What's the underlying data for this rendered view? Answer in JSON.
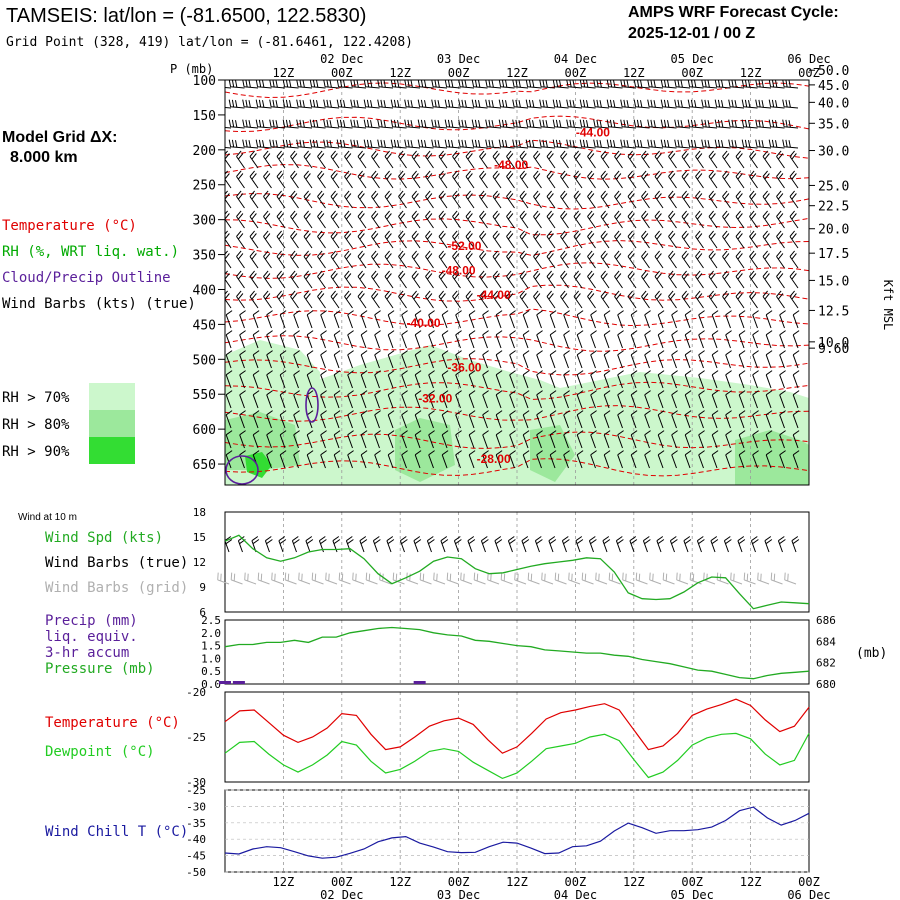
{
  "header": {
    "title": "TAMSEIS:  lat/lon = (-81.6500, 122.5830)",
    "subtitle": "Grid Point (328, 419) lat/lon = (-81.6461, 122.4208)",
    "cycle_line1": "AMPS WRF Forecast Cycle:",
    "cycle_line2": "2025-12-01 / 00  Z"
  },
  "colors": {
    "temperature": "#e00000",
    "rh": "#00aa00",
    "cloud": "#5a1f9a",
    "wind": "#000000",
    "wind_grid": "#b0b0b0",
    "dewpoint": "#22cc22",
    "windchill": "#1a1aa0",
    "rh70": "#ccf7cc",
    "rh80": "#9ce89c",
    "rh90": "#33dd33"
  },
  "left_panel": {
    "grid_line1": "Model Grid ΔX:",
    "grid_line2": "8.000 km",
    "legend": [
      {
        "label": "Temperature (°C)",
        "color": "#e00000"
      },
      {
        "label": "RH (%, WRT liq. wat.)",
        "color": "#00aa00"
      },
      {
        "label": "Cloud/Precip Outline",
        "color": "#5a1f9a"
      },
      {
        "label": "Wind Barbs (kts) (true)",
        "color": "#000000"
      }
    ],
    "rh_legend": [
      {
        "label": "RH > 70%",
        "color": "#ccf7cc"
      },
      {
        "label": "RH > 80%",
        "color": "#9ce89c"
      },
      {
        "label": "RH > 90%",
        "color": "#33dd33"
      }
    ]
  },
  "time_axis": {
    "hour_labels": [
      "12Z",
      "00Z",
      "12Z",
      "00Z",
      "12Z",
      "00Z",
      "12Z",
      "00Z",
      "12Z",
      "00Z"
    ],
    "date_labels": [
      "02 Dec",
      "03 Dec",
      "04 Dec",
      "05 Dec",
      "06 Dec"
    ]
  },
  "chart_data": [
    {
      "type": "contour",
      "name": "cross-section",
      "ylabel": "P (mb)",
      "yticks": [
        "100",
        "150",
        "200",
        "250",
        "300",
        "350",
        "400",
        "450",
        "500",
        "550",
        "600",
        "650"
      ],
      "ylim": [
        100,
        680
      ],
      "right_axis_label": "Kft MSL",
      "right_ticks": [
        "50.0",
        "45.0",
        "40.0",
        "35.0",
        "30.0",
        "25.0",
        "22.5",
        "20.0",
        "17.5",
        "15.0",
        "12.5",
        "10.0",
        "9.60"
      ],
      "right_tick_pressures": [
        86,
        107,
        132,
        162,
        201,
        251,
        280,
        313,
        348,
        387,
        430,
        475,
        484
      ],
      "contour_labels": [
        {
          "text": "-44.00",
          "t": 0.63,
          "p": 175
        },
        {
          "text": "-48.00",
          "t": 0.49,
          "p": 222
        },
        {
          "text": "-52.00",
          "t": 0.41,
          "p": 338
        },
        {
          "text": "-48.00",
          "t": 0.4,
          "p": 373
        },
        {
          "text": "-44.00",
          "t": 0.46,
          "p": 408
        },
        {
          "text": "-40.00",
          "t": 0.34,
          "p": 448
        },
        {
          "text": "-36.00",
          "t": 0.41,
          "p": 512
        },
        {
          "text": "-32.00",
          "t": 0.36,
          "p": 556
        },
        {
          "text": "-28.00",
          "t": 0.46,
          "p": 643
        }
      ]
    },
    {
      "type": "line",
      "name": "wind-10m",
      "label": "Wind at 10 m",
      "legend": [
        {
          "label": "Wind Spd (kts)",
          "color": "#22aa22"
        },
        {
          "label": "Wind Barbs (true)",
          "color": "#000000"
        },
        {
          "label": "Wind Barbs (grid)",
          "color": "#b0b0b0"
        }
      ],
      "yticks": [
        "18",
        "15",
        "12",
        "9",
        "6"
      ],
      "ylim": [
        6,
        18
      ],
      "series": [
        {
          "values": [
            14.5,
            15.2,
            13.6,
            12.5,
            12.1,
            12.5,
            13.2,
            13.5,
            13.5,
            13.6,
            12.4,
            10.6,
            9.4,
            10.1,
            10.9,
            12.1,
            12.6,
            12.4,
            11.2,
            10.6,
            10.7,
            11.1,
            11.5,
            11.8,
            12.0,
            12.2,
            12.5,
            12.4,
            10.8,
            8.3,
            7.6,
            7.5,
            7.6,
            8.4,
            9.5,
            10.2,
            10.1,
            8.2,
            6.4,
            6.8,
            7.2,
            7.1,
            7.0
          ]
        }
      ]
    },
    {
      "type": "line",
      "name": "precip-pressure",
      "legend": [
        {
          "label": "Precip (mm)",
          "color": "#5a1f9a"
        },
        {
          "label": "liq. equiv.",
          "color": "#5a1f9a"
        },
        {
          "label": "3-hr accum",
          "color": "#5a1f9a"
        },
        {
          "label": "Pressure (mb)",
          "color": "#22aa22"
        }
      ],
      "left_ticks": [
        "2.5",
        "2.0",
        "1.5",
        "1.0",
        "0.5",
        "0.0"
      ],
      "left_ylim": [
        0,
        2.5
      ],
      "right_ticks": [
        "686",
        "684",
        "682",
        "680"
      ],
      "right_ylim": [
        680,
        686
      ],
      "right_axis_label": "(mb)",
      "series": [
        {
          "name": "Pressure",
          "values": [
            683.5,
            683.7,
            683.7,
            683.9,
            683.9,
            684.1,
            683.9,
            684.4,
            684.4,
            684.8,
            685.0,
            685.2,
            685.3,
            685.2,
            685.1,
            684.8,
            684.6,
            684.5,
            684.1,
            684.0,
            683.8,
            683.6,
            683.5,
            683.2,
            683.1,
            683.0,
            682.9,
            682.9,
            682.7,
            682.6,
            682.3,
            682.1,
            681.9,
            681.6,
            681.3,
            681.2,
            680.9,
            680.6,
            680.5,
            680.8,
            681.0,
            681.1,
            681.2
          ]
        },
        {
          "name": "Precip",
          "values": [
            0.02,
            0.02,
            0,
            0,
            0,
            0,
            0,
            0,
            0,
            0,
            0,
            0,
            0,
            0,
            0.02,
            0,
            0,
            0,
            0,
            0,
            0,
            0,
            0,
            0,
            0,
            0,
            0,
            0,
            0,
            0,
            0,
            0,
            0,
            0,
            0,
            0,
            0,
            0,
            0,
            0,
            0,
            0,
            0
          ]
        }
      ]
    },
    {
      "type": "line",
      "name": "temperature-dewpoint",
      "legend": [
        {
          "label": "Temperature (°C)",
          "color": "#e00000"
        },
        {
          "label": "Dewpoint (°C)",
          "color": "#22cc22"
        }
      ],
      "yticks": [
        "-20",
        "-25",
        "-30"
      ],
      "ylim": [
        -30,
        -20
      ],
      "series": [
        {
          "name": "Temperature",
          "values": [
            -23.3,
            -22.1,
            -22.0,
            -23.4,
            -24.8,
            -25.6,
            -25.0,
            -24.0,
            -22.4,
            -22.6,
            -24.7,
            -26.4,
            -26.1,
            -25.0,
            -23.8,
            -23.2,
            -22.9,
            -23.6,
            -25.3,
            -26.8,
            -26.1,
            -24.6,
            -23.0,
            -22.3,
            -22.0,
            -21.6,
            -21.3,
            -22.0,
            -24.2,
            -26.4,
            -26.0,
            -24.6,
            -22.6,
            -21.9,
            -21.4,
            -20.8,
            -21.5,
            -23.1,
            -24.4,
            -23.8,
            -21.7
          ]
        },
        {
          "name": "Dewpoint",
          "values": [
            -26.8,
            -25.6,
            -25.5,
            -26.9,
            -28.1,
            -28.9,
            -28.1,
            -27.0,
            -25.5,
            -25.9,
            -27.7,
            -29.0,
            -28.6,
            -27.7,
            -26.6,
            -26.3,
            -26.6,
            -27.8,
            -28.7,
            -29.6,
            -29.0,
            -27.7,
            -26.3,
            -26.0,
            -25.7,
            -25.0,
            -24.7,
            -25.4,
            -27.5,
            -29.5,
            -28.9,
            -27.6,
            -25.9,
            -25.1,
            -24.7,
            -24.6,
            -25.2,
            -26.9,
            -28.1,
            -27.6,
            -24.6
          ]
        }
      ]
    },
    {
      "type": "line",
      "name": "wind-chill",
      "legend": [
        {
          "label": "Wind Chill T (°C)",
          "color": "#1a1aa0"
        }
      ],
      "yticks": [
        "-25",
        "-30",
        "-35",
        "-40",
        "-45",
        "-50"
      ],
      "ylim": [
        -50,
        -25
      ],
      "series": [
        {
          "name": "Wind Chill",
          "values": [
            -44.2,
            -44.5,
            -43.0,
            -42.3,
            -42.6,
            -43.8,
            -45.1,
            -45.8,
            -45.5,
            -44.3,
            -43.0,
            -40.8,
            -39.6,
            -39.2,
            -41.2,
            -42.4,
            -43.8,
            -44.1,
            -44.0,
            -42.3,
            -40.9,
            -41.2,
            -42.7,
            -44.4,
            -44.2,
            -42.3,
            -42.0,
            -40.6,
            -37.5,
            -35.1,
            -36.5,
            -38.2,
            -37.4,
            -37.4,
            -37.1,
            -36.3,
            -34.3,
            -31.3,
            -30.2,
            -33.5,
            -35.7,
            -34.3,
            -32.1
          ]
        }
      ]
    }
  ]
}
